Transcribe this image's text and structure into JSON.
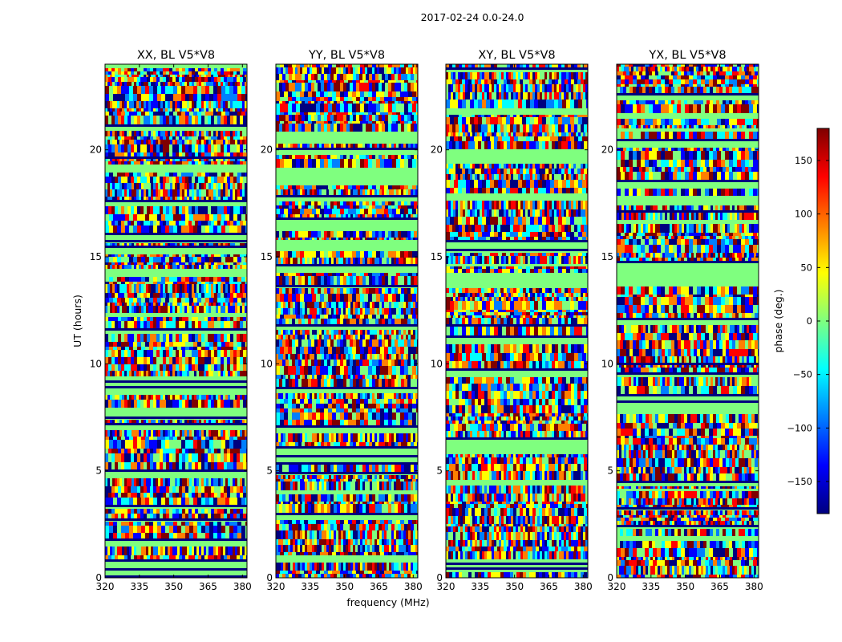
{
  "figure": {
    "suptitle": "2017-02-24 0.0-24.0"
  },
  "chart_data": [
    {
      "type": "heatmap",
      "title": "XX, BL V5*V8",
      "xlabel": "",
      "ylabel": "UT (hours)",
      "xlim": [
        320,
        382
      ],
      "ylim": [
        0,
        24
      ],
      "xticks": [
        "320",
        "335",
        "350",
        "365",
        "380"
      ],
      "yticks": [
        "0",
        "5",
        "10",
        "15",
        "20"
      ]
    },
    {
      "type": "heatmap",
      "title": "YY, BL V5*V8",
      "xlabel": "frequency (MHz)",
      "ylabel": "",
      "xlim": [
        320,
        382
      ],
      "ylim": [
        0,
        24
      ],
      "xticks": [
        "320",
        "335",
        "350",
        "365",
        "380"
      ],
      "yticks": [
        "0",
        "5",
        "10",
        "15",
        "20"
      ]
    },
    {
      "type": "heatmap",
      "title": "XY, BL V5*V8",
      "xlabel": "",
      "ylabel": "",
      "xlim": [
        320,
        382
      ],
      "ylim": [
        0,
        24
      ],
      "xticks": [
        "320",
        "335",
        "350",
        "365",
        "380"
      ],
      "yticks": [
        "0",
        "5",
        "10",
        "15",
        "20"
      ]
    },
    {
      "type": "heatmap",
      "title": "YX, BL V5*V8",
      "xlabel": "",
      "ylabel": "",
      "xlim": [
        320,
        382
      ],
      "ylim": [
        0,
        24
      ],
      "xticks": [
        "320",
        "335",
        "350",
        "365",
        "380"
      ],
      "yticks": [
        "0",
        "5",
        "10",
        "15",
        "20"
      ]
    }
  ],
  "colorbar": {
    "label": "phase (deg.)",
    "range": [
      -180,
      180
    ],
    "ticks": [
      "150",
      "100",
      "50",
      "0",
      "−50",
      "−100",
      "−150"
    ],
    "tick_values": [
      150,
      100,
      50,
      0,
      -50,
      -100,
      -150
    ],
    "colormap": "jet",
    "colors": [
      "#00007f",
      "#0000ff",
      "#007fff",
      "#00ffff",
      "#7fff7f",
      "#ffff00",
      "#ff7f00",
      "#ff0000",
      "#7f0000"
    ]
  }
}
